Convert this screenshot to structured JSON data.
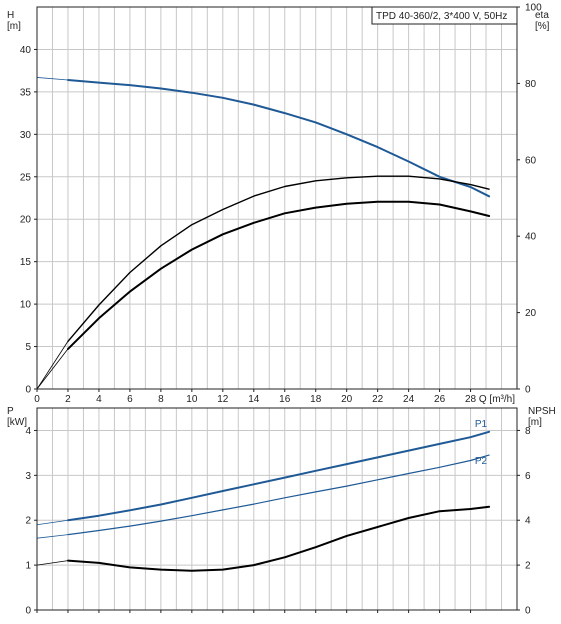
{
  "chart_data": [
    {
      "type": "line",
      "title": "TPD 40-360/2, 3*400 V, 50Hz",
      "xlabel": "Q [m³/h]",
      "ylabel": "H\n[m]",
      "ylabel_right": "eta\n[%]",
      "xlim": [
        0,
        31
      ],
      "ylim": [
        0,
        45
      ],
      "ylim_right": [
        0,
        100
      ],
      "x_ticks": [
        0,
        2,
        4,
        6,
        8,
        10,
        12,
        14,
        16,
        18,
        20,
        22,
        24,
        26,
        28
      ],
      "y_ticks": [
        0,
        5,
        10,
        15,
        20,
        25,
        30,
        35,
        40
      ],
      "y_ticks_right": [
        0,
        20,
        40,
        60,
        80,
        100
      ],
      "grid": true,
      "series": [
        {
          "axis": "left",
          "color": "#1f5a96",
          "x": [
            0,
            2,
            4,
            6,
            8,
            10,
            12,
            14,
            16,
            18,
            20,
            22,
            24,
            26,
            28,
            29.2
          ],
          "values": [
            36.7,
            36.4,
            36.1,
            35.8,
            35.4,
            34.9,
            34.3,
            33.5,
            32.5,
            31.4,
            30.0,
            28.5,
            26.8,
            25.0,
            23.8,
            22.7
          ]
        },
        {
          "axis": "right",
          "color": "#000000",
          "x": [
            0,
            2,
            4,
            6,
            8,
            10,
            12,
            14,
            16,
            18,
            20,
            22,
            24,
            26,
            28,
            29.2
          ],
          "values": [
            0,
            12.5,
            22,
            30.5,
            37.5,
            43,
            47,
            50.5,
            53,
            54.5,
            55.3,
            55.7,
            55.7,
            55,
            53.5,
            52.3
          ]
        },
        {
          "axis": "right",
          "color": "#000000",
          "x": [
            0,
            2,
            4,
            6,
            8,
            10,
            12,
            14,
            16,
            18,
            20,
            22,
            24,
            26,
            28,
            29.2
          ],
          "values": [
            0,
            10.5,
            18.5,
            25.5,
            31.5,
            36.5,
            40.5,
            43.5,
            46,
            47.5,
            48.5,
            49,
            49,
            48.3,
            46.5,
            45.3
          ]
        }
      ]
    },
    {
      "type": "line",
      "xlabel": "",
      "ylabel": "P\n[kW]",
      "ylabel_right": "NPSH\n[m]",
      "xlim": [
        0,
        31
      ],
      "ylim": [
        0,
        4.5
      ],
      "ylim_right": [
        0,
        9
      ],
      "y_ticks": [
        0,
        1,
        2,
        3,
        4
      ],
      "y_ticks_right": [
        0,
        2,
        4,
        6,
        8
      ],
      "grid": true,
      "series": [
        {
          "name": "P1",
          "axis": "left",
          "color": "#1f5a96",
          "x": [
            0,
            2,
            4,
            6,
            8,
            10,
            12,
            14,
            16,
            18,
            20,
            22,
            24,
            26,
            28,
            29.2
          ],
          "values": [
            1.9,
            2.0,
            2.1,
            2.22,
            2.35,
            2.5,
            2.65,
            2.8,
            2.95,
            3.1,
            3.25,
            3.4,
            3.55,
            3.7,
            3.85,
            3.97
          ]
        },
        {
          "name": "P2",
          "axis": "left",
          "color": "#1f5a96",
          "x": [
            0,
            2,
            4,
            6,
            8,
            10,
            12,
            14,
            16,
            18,
            20,
            22,
            24,
            26,
            28,
            29.2
          ],
          "values": [
            1.6,
            1.68,
            1.77,
            1.87,
            1.98,
            2.1,
            2.23,
            2.36,
            2.5,
            2.63,
            2.76,
            2.9,
            3.04,
            3.18,
            3.33,
            3.45
          ]
        },
        {
          "axis": "right",
          "color": "#000000",
          "x": [
            0,
            2,
            4,
            6,
            8,
            10,
            12,
            14,
            16,
            18,
            20,
            22,
            24,
            26,
            28,
            29.2
          ],
          "values": [
            2.0,
            2.2,
            2.1,
            1.9,
            1.8,
            1.75,
            1.8,
            2.0,
            2.35,
            2.8,
            3.3,
            3.7,
            4.1,
            4.4,
            4.5,
            4.6
          ]
        }
      ]
    }
  ]
}
